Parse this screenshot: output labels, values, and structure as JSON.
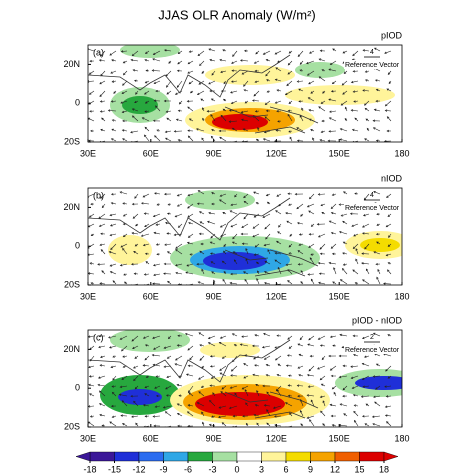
{
  "title": "JJAS OLR Anomaly (W/m²)",
  "panels": [
    {
      "label": "(a)",
      "name": "pIOD",
      "reference_value": "4",
      "reference_text": "Reference Vector"
    },
    {
      "label": "(b)",
      "name": "nIOD",
      "reference_value": "4",
      "reference_text": "Reference Vector"
    },
    {
      "label": "(c)",
      "name": "pIOD - nIOD",
      "reference_value": "2",
      "reference_text": "Reference Vector"
    }
  ],
  "xlim": [
    30,
    180
  ],
  "xticks": [
    {
      "value": 30,
      "label": "30E"
    },
    {
      "value": 60,
      "label": "60E"
    },
    {
      "value": 90,
      "label": "90E"
    },
    {
      "value": 120,
      "label": "120E"
    },
    {
      "value": 150,
      "label": "150E"
    },
    {
      "value": 180,
      "label": "180"
    }
  ],
  "ylim": [
    -20,
    30
  ],
  "yticks": [
    {
      "value": 20,
      "label": "20N"
    },
    0,
    {
      "value": -20,
      "label": "20S"
    }
  ],
  "colorbar": {
    "lim": [
      -18,
      18
    ],
    "ticks": [
      -18,
      -15,
      -12,
      -9,
      -6,
      -3,
      0,
      3,
      6,
      9,
      12,
      15,
      18
    ],
    "colors": [
      "#3b1798",
      "#1f2fd8",
      "#2a6cf0",
      "#2fa7e6",
      "#27a83e",
      "#a6e0a2",
      "#ffffff",
      "#fff49a",
      "#f4dc00",
      "#f5a300",
      "#f05f00",
      "#dc0000"
    ]
  }
}
